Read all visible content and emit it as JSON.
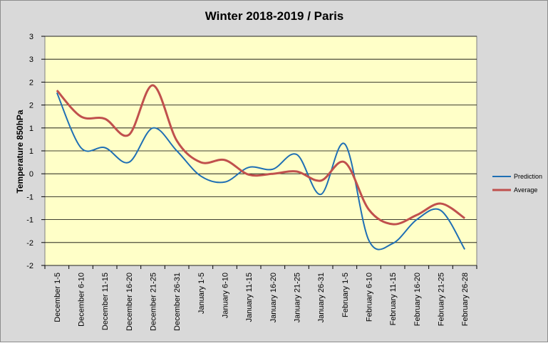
{
  "chart_data": {
    "type": "line",
    "title": "Winter 2018-2019 / Paris",
    "xlabel": "",
    "ylabel": "Temperature 850hPa",
    "ylim": [
      -2,
      3
    ],
    "ytick_labels": [
      "3",
      "2",
      "2",
      "1",
      "1",
      "0",
      "-1",
      "-1",
      "-2",
      "-2"
    ],
    "ytick_values": [
      2.5,
      2.0,
      1.5,
      1.0,
      0.5,
      0.0,
      -0.5,
      -1.0,
      -1.5,
      -2.0
    ],
    "grid": true,
    "legend_position": "right",
    "categories": [
      "December 1-5",
      "December 6-10",
      "December 11-15",
      "December 16-20",
      "December 21-25",
      "December 26-31",
      "January 1-5",
      "January 6-10",
      "January 11-15",
      "January 16-20",
      "January 21-25",
      "January 26-31",
      "February 1-5",
      "February 6-10",
      "February 11-15",
      "February 16-20",
      "February 21-25",
      "February 26-28"
    ],
    "series": [
      {
        "name": "Prediction",
        "color": "#1f6fb4",
        "values": [
          1.77,
          0.57,
          0.57,
          0.25,
          1.0,
          0.5,
          -0.05,
          -0.18,
          0.14,
          0.1,
          0.42,
          -0.45,
          0.65,
          -1.45,
          -1.52,
          -1.0,
          -0.8,
          -1.65
        ]
      },
      {
        "name": "Average",
        "color": "#c0504d",
        "values": [
          1.82,
          1.25,
          1.2,
          0.85,
          1.93,
          0.72,
          0.25,
          0.3,
          -0.02,
          0.0,
          0.05,
          -0.15,
          0.25,
          -0.78,
          -1.1,
          -0.9,
          -0.65,
          -0.97
        ]
      }
    ]
  },
  "colors": {
    "background": "#d9d9d9",
    "plot_area": "#ffffc8",
    "grid": "#000000"
  }
}
